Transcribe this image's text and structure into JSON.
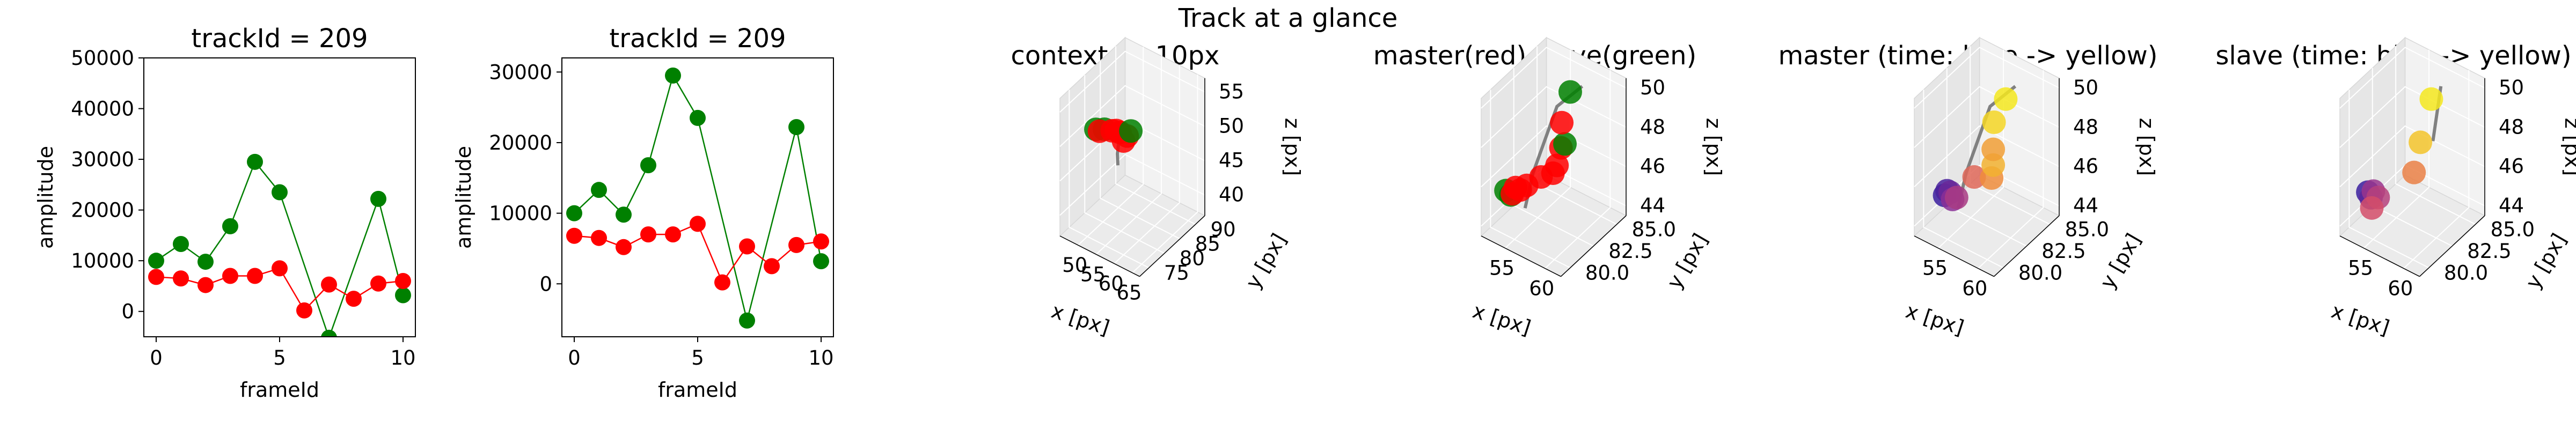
{
  "figure": {
    "suptitle": "Track at a glance"
  },
  "colors": {
    "green": "#008000",
    "red": "#ff0000",
    "line": "#808080",
    "pane1": "#f2f2f2",
    "pane2": "#e6e6e6",
    "pane3": "#ebebeb",
    "grid": "#ffffff",
    "time_start": "#3a1d9e",
    "time_end": "#f5e81f"
  },
  "chart_data": [
    {
      "type": "scatter",
      "title": "trackId = 209",
      "xlabel": "frameId",
      "ylabel": "amplitude",
      "xlim": [
        -0.5,
        10.5
      ],
      "ylim": [
        -5000,
        50000
      ],
      "xticks": [
        0,
        5,
        10
      ],
      "yticks": [
        0,
        10000,
        20000,
        30000,
        40000,
        50000
      ],
      "yticklabels": [
        "0",
        "10000",
        "20000",
        "30000",
        "40000",
        "50000"
      ],
      "lines_connect_points": true,
      "series": [
        {
          "color": "green",
          "x": [
            0,
            1,
            2,
            3,
            4,
            5,
            7,
            9,
            10
          ],
          "y": [
            10000,
            13300,
            9800,
            16800,
            29500,
            23500,
            -5200,
            22200,
            3200
          ]
        },
        {
          "color": "red",
          "x": [
            0,
            1,
            2,
            3,
            4,
            5,
            6,
            7,
            8,
            9,
            10
          ],
          "y": [
            6800,
            6500,
            5200,
            7000,
            7000,
            8500,
            200,
            5300,
            2500,
            5500,
            6000
          ]
        }
      ]
    },
    {
      "type": "scatter",
      "title": "trackId = 209",
      "xlabel": "frameId",
      "ylabel": "amplitude",
      "xlim": [
        -0.5,
        10.5
      ],
      "ylim": [
        -7500,
        32000
      ],
      "xticks": [
        0,
        5,
        10
      ],
      "yticks": [
        0,
        10000,
        20000,
        30000
      ],
      "yticklabels": [
        "0",
        "10000",
        "20000",
        "30000"
      ],
      "lines_connect_points": true,
      "series": [
        {
          "color": "green",
          "x": [
            0,
            1,
            2,
            3,
            4,
            5,
            7,
            9,
            10
          ],
          "y": [
            10000,
            13300,
            9800,
            16800,
            29500,
            23500,
            -5200,
            22200,
            3200
          ]
        },
        {
          "color": "red",
          "x": [
            0,
            1,
            2,
            3,
            4,
            5,
            6,
            7,
            8,
            9,
            10
          ],
          "y": [
            6800,
            6500,
            5200,
            7000,
            7000,
            8500,
            200,
            5300,
            2500,
            5500,
            6000
          ]
        }
      ]
    },
    {
      "type": "scatter3d",
      "title": "context +- 10px",
      "xlabel": "x [px]",
      "ylabel": "y [px]",
      "zlabel": "z [px]",
      "xlim": [
        45,
        67
      ],
      "ylim": [
        72,
        93
      ],
      "zlim": [
        37,
        57
      ],
      "xticks": [
        50,
        55,
        60,
        65
      ],
      "yticks": [
        75,
        80,
        85,
        90
      ],
      "zticks": [
        40,
        45,
        50,
        55
      ],
      "track_line": [
        [
          55,
          79,
          47
        ],
        [
          54,
          80,
          48
        ],
        [
          53,
          82,
          50
        ]
      ],
      "points": [
        {
          "x": 45.5,
          "y": 83,
          "z": 48,
          "color": "green"
        },
        {
          "x": 47,
          "y": 84,
          "z": 48,
          "color": "green"
        },
        {
          "x": 46.5,
          "y": 83,
          "z": 48,
          "color": "red"
        },
        {
          "x": 50,
          "y": 83,
          "z": 49,
          "color": "red"
        },
        {
          "x": 52,
          "y": 82,
          "z": 50,
          "color": "red"
        },
        {
          "x": 53,
          "y": 82,
          "z": 50,
          "color": "red"
        },
        {
          "x": 54,
          "y": 82,
          "z": 49,
          "color": "red"
        },
        {
          "x": 55,
          "y": 82,
          "z": 50,
          "color": "red"
        },
        {
          "x": 56,
          "y": 82,
          "z": 51,
          "color": "green"
        }
      ]
    },
    {
      "type": "scatter3d",
      "title": "master(red) slave(green)",
      "xlabel": "x [px]",
      "ylabel": "y [px]",
      "zlabel": "z [px]",
      "xlim": [
        52,
        62
      ],
      "ylim": [
        79,
        86
      ],
      "zlim": [
        43.5,
        50.5
      ],
      "xticks": [
        55,
        60
      ],
      "yticks": [
        80.0,
        82.5,
        85.0
      ],
      "yticklabels": [
        "80.0",
        "82.5",
        "85.0"
      ],
      "zticks": [
        44,
        46,
        48,
        50
      ],
      "track_line": [
        [
          54,
          82,
          44
        ],
        [
          55,
          82,
          46
        ],
        [
          58,
          82,
          50
        ],
        [
          60,
          83,
          51
        ]
      ],
      "points": [
        {
          "x": 51.6,
          "y": 82,
          "z": 44.4,
          "color": "green"
        },
        {
          "x": 52.2,
          "y": 82,
          "z": 44.3,
          "color": "green"
        },
        {
          "x": 52.4,
          "y": 82,
          "z": 44.4,
          "color": "red"
        },
        {
          "x": 52.8,
          "y": 82,
          "z": 44.8,
          "color": "red"
        },
        {
          "x": 53.4,
          "y": 82,
          "z": 44.8,
          "color": "red"
        },
        {
          "x": 54.2,
          "y": 82,
          "z": 45.2,
          "color": "red"
        },
        {
          "x": 56.0,
          "y": 82,
          "z": 46.0,
          "color": "red"
        },
        {
          "x": 57.5,
          "y": 82,
          "z": 46.5,
          "color": "red"
        },
        {
          "x": 58.0,
          "y": 82,
          "z": 47.0,
          "color": "red"
        },
        {
          "x": 58.5,
          "y": 82,
          "z": 48.0,
          "color": "red"
        },
        {
          "x": 59.0,
          "y": 82,
          "z": 48.3,
          "color": "green"
        },
        {
          "x": 58.6,
          "y": 82,
          "z": 49.3,
          "color": "red"
        },
        {
          "x": 58.5,
          "y": 83,
          "z": 50.4,
          "color": "green"
        }
      ]
    },
    {
      "type": "scatter3d",
      "title": "master (time: blue -> yellow)",
      "xlabel": "x [px]",
      "ylabel": "y [px]",
      "zlabel": "z [px]",
      "xlim": [
        52,
        62
      ],
      "ylim": [
        79,
        86
      ],
      "zlim": [
        43.5,
        50.5
      ],
      "xticks": [
        55,
        60
      ],
      "yticks": [
        80.0,
        82.5,
        85.0
      ],
      "yticklabels": [
        "80.0",
        "82.5",
        "85.0"
      ],
      "zticks": [
        44,
        46,
        48,
        50
      ],
      "colormap": "time: blue -> yellow",
      "track_line": [
        [
          54,
          82,
          44
        ],
        [
          55,
          82,
          46
        ],
        [
          58,
          82,
          50
        ],
        [
          60,
          83,
          51
        ]
      ],
      "points": [
        {
          "x": 52.3,
          "y": 82,
          "z": 44.3,
          "t": 0.0
        },
        {
          "x": 52.6,
          "y": 82,
          "z": 44.6,
          "t": 0.05
        },
        {
          "x": 53.0,
          "y": 82,
          "z": 44.6,
          "t": 0.15
        },
        {
          "x": 53.3,
          "y": 82,
          "z": 44.3,
          "t": 0.25
        },
        {
          "x": 53.8,
          "y": 82,
          "z": 44.5,
          "t": 0.35
        },
        {
          "x": 56.0,
          "y": 82,
          "z": 46.0,
          "t": 0.6
        },
        {
          "x": 58.2,
          "y": 82,
          "z": 46.4,
          "t": 0.75
        },
        {
          "x": 58.4,
          "y": 82,
          "z": 47.1,
          "t": 0.85
        },
        {
          "x": 58.4,
          "y": 82,
          "z": 47.9,
          "t": 0.8
        },
        {
          "x": 58.5,
          "y": 82,
          "z": 49.3,
          "t": 0.95
        },
        {
          "x": 58.8,
          "y": 83,
          "z": 50.1,
          "t": 1.0
        }
      ]
    },
    {
      "type": "scatter3d",
      "title": "slave (time: blue -> yellow)",
      "xlabel": "x [px]",
      "ylabel": "y [px]",
      "zlabel": "z [px]",
      "xlim": [
        52,
        62
      ],
      "ylim": [
        79,
        86
      ],
      "zlim": [
        43.5,
        50.5
      ],
      "xticks": [
        55,
        60
      ],
      "yticks": [
        80.0,
        82.5,
        85.0
      ],
      "yticklabels": [
        "80.0",
        "82.5",
        "85.0"
      ],
      "zticks": [
        44,
        46,
        48,
        50
      ],
      "colormap": "time: blue -> yellow",
      "track_line": [
        [
          59,
          83,
          48
        ],
        [
          60,
          83,
          51
        ]
      ],
      "points": [
        {
          "x": 52.0,
          "y": 82,
          "z": 44.4,
          "t": 0.0
        },
        {
          "x": 52.4,
          "y": 82,
          "z": 44.2,
          "t": 0.1
        },
        {
          "x": 52.7,
          "y": 82,
          "z": 44.6,
          "t": 0.3
        },
        {
          "x": 53.3,
          "y": 82,
          "z": 44.4,
          "t": 0.4
        },
        {
          "x": 52.5,
          "y": 82,
          "z": 43.7,
          "t": 0.5
        },
        {
          "x": 57.8,
          "y": 82,
          "z": 46.6,
          "t": 0.7
        },
        {
          "x": 58.6,
          "y": 82,
          "z": 48.3,
          "t": 0.9
        },
        {
          "x": 58.8,
          "y": 83,
          "z": 50.1,
          "t": 1.0
        }
      ]
    }
  ]
}
